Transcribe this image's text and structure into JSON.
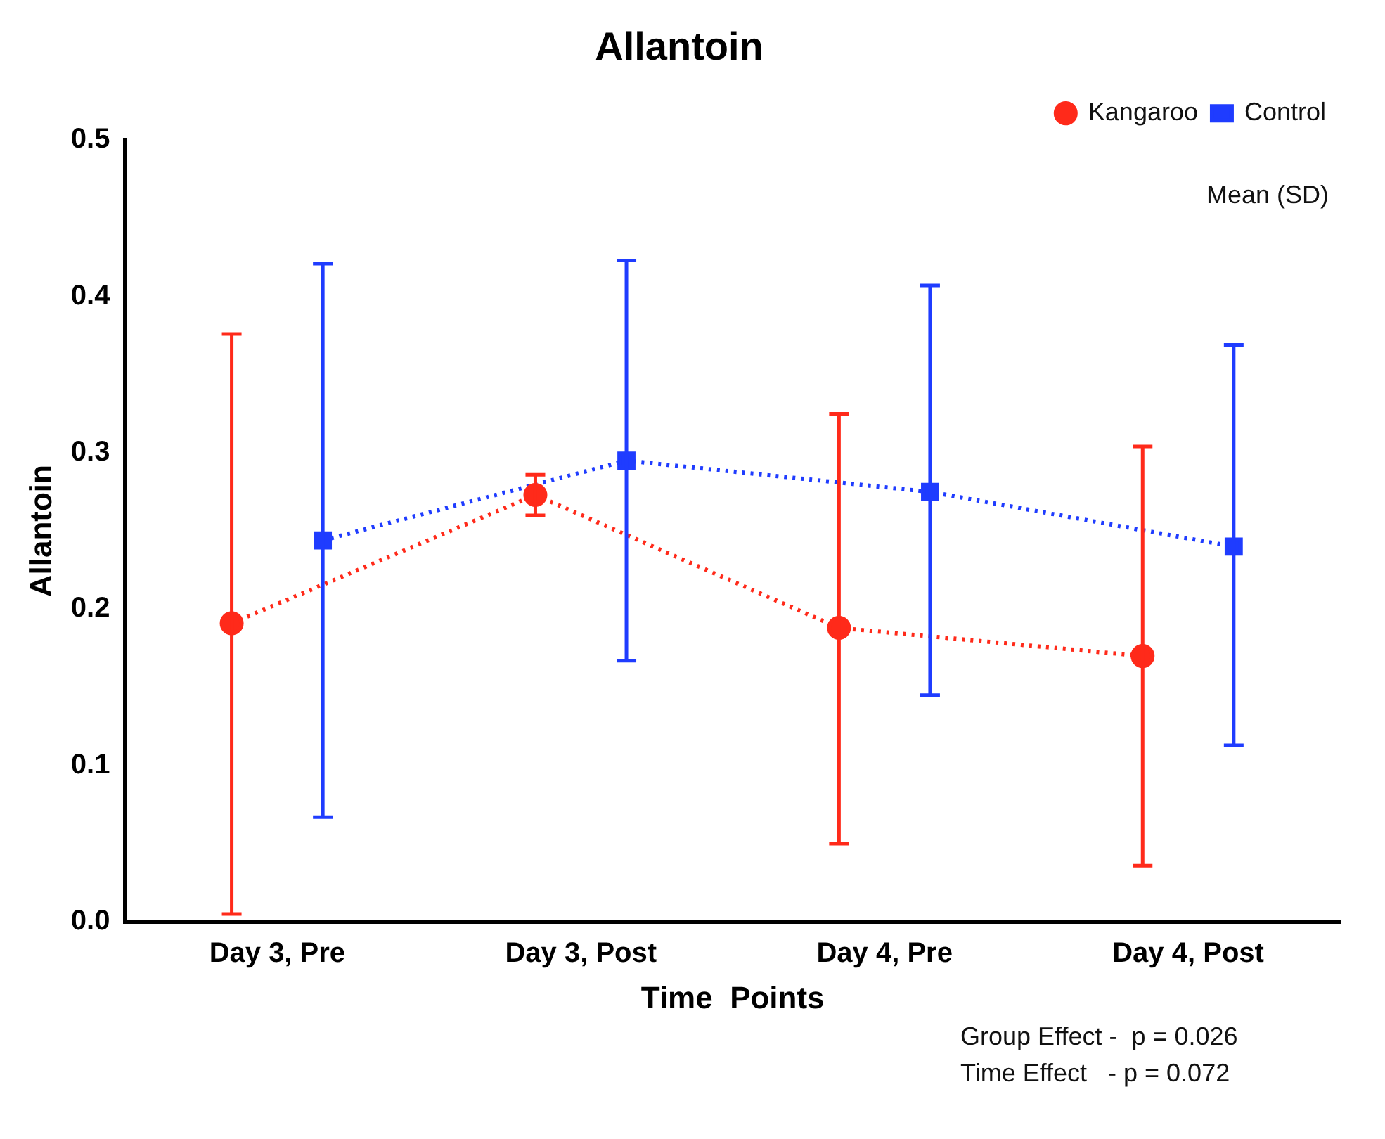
{
  "chart_data": {
    "type": "line",
    "title": "Allantoin",
    "xlabel": "Time  Points",
    "ylabel": "Allantoin",
    "categories": [
      "Day 3, Pre",
      "Day 3, Post",
      "Day 4, Pre",
      "Day 4, Post"
    ],
    "series": [
      {
        "name": "Kangaroo",
        "color": "#ff2a1a",
        "values": [
          0.191,
          0.273,
          0.188,
          0.17
        ],
        "errors": [
          [
            0.005,
            0.376
          ],
          [
            0.26,
            0.286
          ],
          [
            0.05,
            0.325
          ],
          [
            0.036,
            0.304
          ]
        ],
        "marker": "circle"
      },
      {
        "name": "Control",
        "color": "#1f3cff",
        "values": [
          0.244,
          0.295,
          0.275,
          0.24
        ],
        "errors": [
          [
            0.067,
            0.421
          ],
          [
            0.167,
            0.423
          ],
          [
            0.145,
            0.407
          ],
          [
            0.113,
            0.369
          ]
        ],
        "marker": "square"
      }
    ],
    "ylim": [
      0,
      0.5
    ],
    "yticks": [
      {
        "value": 0,
        "label": "0.0"
      },
      0.1,
      0.2,
      0.3,
      0.4,
      0.5
    ],
    "grid": false,
    "legend": "top right",
    "line_style": "dotted",
    "annotations": [
      "Mean (SD)",
      "Group Effect -  p = 0.026",
      "Time Effect   - p = 0.072"
    ]
  }
}
